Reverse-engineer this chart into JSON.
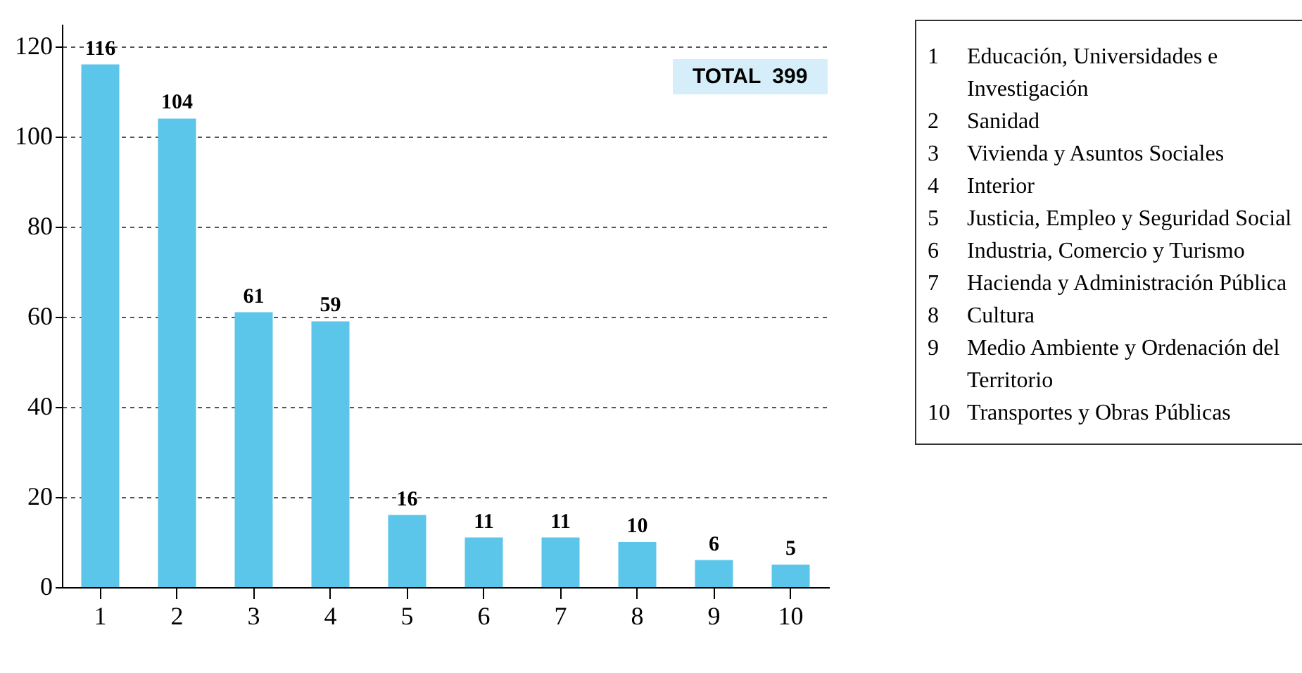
{
  "chart_data": {
    "type": "bar",
    "categories": [
      "1",
      "2",
      "3",
      "4",
      "5",
      "6",
      "7",
      "8",
      "9",
      "10"
    ],
    "values": [
      116,
      104,
      61,
      59,
      16,
      11,
      11,
      10,
      6,
      5
    ],
    "color": "#5bc5ea",
    "ylim": [
      0,
      125
    ],
    "yticks": [
      0,
      20,
      40,
      60,
      80,
      100,
      120
    ],
    "grid": "y",
    "data_labels": true,
    "annotations": [
      "TOTAL  399",
      "1 Educación, Universidades e Investigación",
      "2 Sanidad",
      "3 Vivienda y Asuntos Sociales",
      "4 Interior",
      "5 Justicia, Empleo y Seguridad Social",
      "6 Industria, Comercio y Turismo",
      "7 Hacienda y Administración Pública",
      "8 Cultura",
      "9 Medio Ambiente y Ordenación del Territorio",
      "10 Transportes y Obras Públicas"
    ]
  }
}
